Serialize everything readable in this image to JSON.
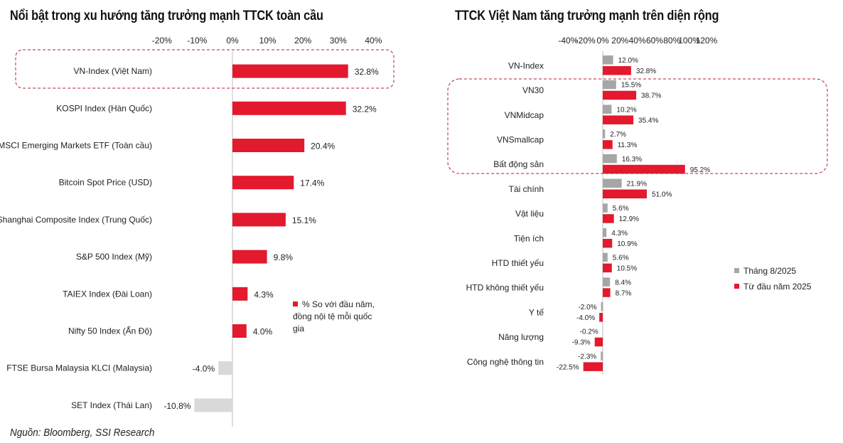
{
  "left": {
    "title": "Nổi bật trong xu hướng tăng trưởng mạnh TTCK toàn cầu",
    "legend_label": "% So với đầu năm, đồng nội tệ mỗi quốc gia"
  },
  "right": {
    "title": "TTCK Việt Nam tăng trưởng mạnh trên diện rộng"
  },
  "source": "Nguồn: Bloomberg, SSI Research",
  "colors": {
    "red": "#e3192d",
    "gray": "#a6a6a6",
    "lightgray": "#d9d9d9",
    "highlight": "#b11f2b"
  },
  "chart_data": [
    {
      "type": "bar",
      "orientation": "horizontal",
      "title": "Nổi bật trong xu hướng tăng trưởng mạnh TTCK toàn cầu",
      "categories": [
        "VN-Index (Việt Nam)",
        "KOSPI Index (Hàn Quốc)",
        "MSCI Emerging Markets ETF (Toàn cầu)",
        "Bitcoin Spot Price (USD)",
        "Shanghai Composite Index (Trung Quốc)",
        "S&P 500 Index (Mỹ)",
        "TAIEX Index (Đài Loan)",
        "Nifty 50 Index (Ấn Độ)",
        "FTSE Bursa Malaysia KLCI (Malaysia)",
        "SET Index (Thái Lan)"
      ],
      "series": [
        {
          "name": "% So với đầu năm, đồng nội tệ mỗi quốc gia",
          "values": [
            32.8,
            32.2,
            20.4,
            17.4,
            15.1,
            9.8,
            4.3,
            4.0,
            -4.0,
            -10.8
          ]
        }
      ],
      "value_labels": [
        "32.8%",
        "32.2%",
        "20.4%",
        "17.4%",
        "15.1%",
        "9.8%",
        "4.3%",
        "4.0%",
        "-4.0%",
        "-10.8%"
      ],
      "xlim": [
        -20,
        40
      ],
      "xticks": [
        -20,
        -10,
        0,
        10,
        20,
        30,
        40
      ],
      "xtick_labels": [
        "-20%",
        "-10%",
        "0%",
        "10%",
        "20%",
        "30%",
        "40%"
      ],
      "highlighted_categories": [
        "VN-Index (Việt Nam)"
      ],
      "legend_position": "right"
    },
    {
      "type": "bar",
      "orientation": "horizontal",
      "title": "TTCK Việt Nam tăng trưởng mạnh trên diện rộng",
      "categories": [
        "VN-Index",
        "VN30",
        "VNMidcap",
        "VNSmallcap",
        "Bất động sản",
        "Tài chính",
        "Vật liệu",
        "Tiện ích",
        "HTD thiết yếu",
        "HTD không thiết yếu",
        "Y tế",
        "Năng lượng",
        "Công nghệ thông tin"
      ],
      "series": [
        {
          "name": "Tháng 8/2025",
          "values": [
            12.0,
            15.5,
            10.2,
            2.7,
            16.3,
            21.9,
            5.6,
            4.3,
            5.6,
            8.4,
            -2.0,
            -0.2,
            -2.3
          ],
          "labels": [
            "12.0%",
            "15.5%",
            "10.2%",
            "2.7%",
            "16.3%",
            "21.9%",
            "5.6%",
            "4.3%",
            "5.6%",
            "8.4%",
            "-2.0%",
            "-0.2%",
            "-2.3%"
          ]
        },
        {
          "name": "Từ đầu năm 2025",
          "values": [
            32.8,
            38.7,
            35.4,
            11.3,
            95.2,
            51.0,
            12.9,
            10.9,
            10.5,
            8.7,
            -4.0,
            -9.3,
            -22.5
          ],
          "labels": [
            "32.8%",
            "38.7%",
            "35.4%",
            "11.3%",
            "95.2%",
            "51.0%",
            "12.9%",
            "10.9%",
            "10.5%",
            "8.7%",
            "-4.0%",
            "-9.3%",
            "-22.5%"
          ]
        }
      ],
      "xlim": [
        -40,
        120
      ],
      "xticks": [
        -40,
        -20,
        0,
        20,
        40,
        60,
        80,
        100,
        120
      ],
      "xtick_labels": [
        "-40%",
        "-20%",
        "0%",
        "20%",
        "40%",
        "60%",
        "80%",
        "100%",
        "120%"
      ],
      "highlighted_categories": [
        "VN30",
        "VNMidcap",
        "VNSmallcap",
        "Bất động sản"
      ],
      "legend_position": "right"
    }
  ]
}
